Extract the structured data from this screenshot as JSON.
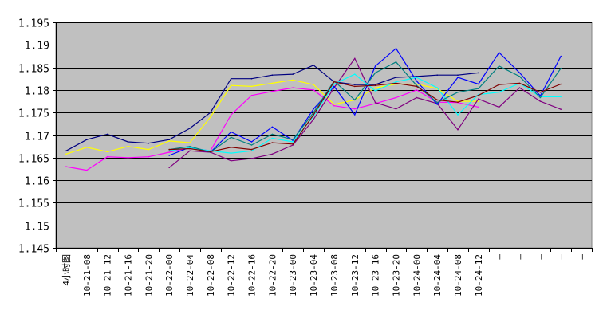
{
  "chart_data": {
    "type": "line",
    "title": "",
    "xlabel": "",
    "ylabel": "",
    "ylim": [
      1.145,
      1.195
    ],
    "y_ticks": [
      "1.145",
      "1.15",
      "1.155",
      "1.16",
      "1.165",
      "1.17",
      "1.175",
      "1.18",
      "1.185",
      "1.19",
      "1.195"
    ],
    "grid": "horizontal",
    "background": "#c0c0c0",
    "categories": [
      "4小时图",
      "10-21-08",
      "10-21-12",
      "10-21-16",
      "10-21-20",
      "10-22-00",
      "10-22-04",
      "10-22-08",
      "10-22-12",
      "10-22-16",
      "10-22-20",
      "10-23-00",
      "10-23-04",
      "10-23-08",
      "10-23-12",
      "10-23-16",
      "10-23-20",
      "10-24-00",
      "10-24-04",
      "10-24-08",
      "10-24-12",
      "—",
      "—",
      "—",
      "—",
      "—"
    ],
    "series": [
      {
        "color": "#000080",
        "values": [
          1.1665,
          1.169,
          1.1702,
          1.1685,
          1.1682,
          1.169,
          1.1715,
          1.175,
          1.1825,
          1.1825,
          1.1833,
          1.1835,
          1.1855,
          1.1818,
          1.1812,
          1.1812,
          1.1828,
          1.183,
          1.1833,
          1.1833,
          1.1838,
          null,
          null,
          null,
          null,
          null
        ]
      },
      {
        "color": "#ffff00",
        "values": [
          1.1658,
          1.1673,
          1.1663,
          1.1675,
          1.1668,
          1.1687,
          1.1683,
          1.174,
          1.181,
          1.1808,
          1.1815,
          1.1822,
          1.1812,
          1.1768,
          1.1778,
          1.1805,
          1.1813,
          1.1813,
          1.1803,
          1.1775,
          1.1775,
          null,
          null,
          null,
          null,
          null
        ]
      },
      {
        "color": "#ff00ff",
        "values": [
          1.163,
          1.1622,
          1.1652,
          1.165,
          1.1652,
          1.1662,
          1.1672,
          1.1665,
          1.1745,
          1.1788,
          1.1797,
          1.1805,
          1.18,
          1.1765,
          1.1758,
          1.177,
          1.1783,
          1.18,
          1.1773,
          1.1772,
          1.1762,
          null,
          null,
          null,
          null,
          null
        ]
      },
      {
        "color": "#800080",
        "values": [
          null,
          null,
          null,
          null,
          null,
          1.1628,
          1.1665,
          1.1662,
          1.1643,
          1.1648,
          1.1658,
          1.1678,
          1.1735,
          1.1805,
          1.187,
          1.1772,
          1.1758,
          1.1783,
          1.177,
          1.1712,
          1.178,
          1.1762,
          1.1805,
          1.1775,
          1.1757,
          null
        ]
      },
      {
        "color": "#0000ff",
        "values": [
          null,
          null,
          null,
          null,
          null,
          1.1655,
          1.1673,
          1.1662,
          1.1707,
          1.1685,
          1.1718,
          1.1688,
          1.1758,
          1.1808,
          1.1745,
          1.1853,
          1.1892,
          1.182,
          1.1768,
          1.1828,
          1.1813,
          1.1883,
          1.1838,
          1.1787,
          1.1875,
          null
        ]
      },
      {
        "color": "#00ffff",
        "values": [
          null,
          null,
          null,
          null,
          null,
          1.1665,
          1.1672,
          1.1665,
          1.166,
          1.1665,
          1.1693,
          1.1685,
          1.1742,
          1.1813,
          1.1835,
          1.1798,
          1.1818,
          1.1828,
          1.1805,
          1.1745,
          1.179,
          1.1795,
          1.1815,
          1.1785,
          1.1785,
          null
        ]
      },
      {
        "color": "#008080",
        "values": [
          null,
          null,
          null,
          null,
          null,
          1.1668,
          1.1675,
          1.1662,
          1.1695,
          1.1678,
          1.1702,
          1.169,
          1.175,
          1.182,
          1.1778,
          1.1838,
          1.1862,
          1.181,
          1.1772,
          1.1795,
          1.1803,
          1.1853,
          1.183,
          1.1783,
          1.1848,
          null
        ]
      },
      {
        "color": "#800000",
        "values": [
          null,
          null,
          null,
          null,
          null,
          1.1668,
          1.167,
          1.1663,
          1.1673,
          1.1668,
          1.1683,
          1.168,
          1.1745,
          1.1818,
          1.1808,
          1.181,
          1.1815,
          1.1808,
          1.1778,
          1.1773,
          1.1788,
          1.1812,
          1.1815,
          1.1795,
          1.1813,
          null
        ]
      }
    ]
  }
}
